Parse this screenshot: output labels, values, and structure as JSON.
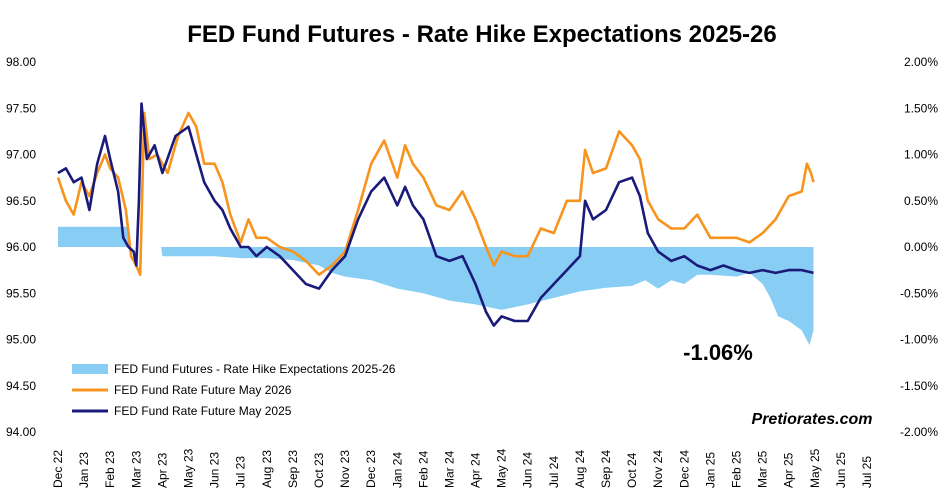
{
  "chart_data": {
    "type": "line",
    "title": "FED Fund Futures - Rate Hike Expectations 2025-26",
    "y_left": {
      "min": 94.0,
      "max": 98.0,
      "ticks": [
        "98.00",
        "97.50",
        "97.00",
        "96.50",
        "96.00",
        "95.50",
        "95.00",
        "94.50",
        "94.00"
      ]
    },
    "y_right": {
      "min": -2.0,
      "max": 2.0,
      "ticks": [
        "2.00%",
        "1.50%",
        "1.00%",
        "0.50%",
        "0.00%",
        "-0.50%",
        "-1.00%",
        "-1.50%",
        "-2.00%"
      ]
    },
    "x_labels": [
      "Dec 22",
      "Jan 23",
      "Feb 23",
      "Mar 23",
      "Apr 23",
      "May 23",
      "Jun 23",
      "Jul 23",
      "Aug 23",
      "Sep 23",
      "Oct 23",
      "Nov 23",
      "Dec 23",
      "Jan 24",
      "Feb 24",
      "Mar 24",
      "Apr 24",
      "May 24",
      "Jun 24",
      "Jul 24",
      "Aug 24",
      "Sep 24",
      "Oct 24",
      "Nov 24",
      "Dec 24",
      "Jan 25",
      "Feb 25",
      "Mar 25",
      "Apr 25",
      "May 25",
      "Jun 25",
      "Jul 25"
    ],
    "x_index_unit": "month index from Dec 22 (0) to Jul 25 (31)",
    "series": [
      {
        "name": "FED Fund Futures - Rate Hike Expectations 2025-26",
        "axis": "right",
        "color": "#87cdf4",
        "style": "area",
        "points": [
          [
            0,
            0.22
          ],
          [
            2.7,
            0.22
          ],
          [
            2.75,
            0.0
          ],
          [
            3.95,
            0.0
          ],
          [
            4.0,
            -0.1
          ],
          [
            5,
            -0.1
          ],
          [
            6,
            -0.1
          ],
          [
            7,
            -0.12
          ],
          [
            8,
            -0.12
          ],
          [
            9,
            -0.14
          ],
          [
            10,
            -0.2
          ],
          [
            10.5,
            -0.28
          ],
          [
            11,
            -0.32
          ],
          [
            12,
            -0.36
          ],
          [
            13,
            -0.45
          ],
          [
            14,
            -0.5
          ],
          [
            15,
            -0.58
          ],
          [
            16,
            -0.62
          ],
          [
            17,
            -0.68
          ],
          [
            18,
            -0.62
          ],
          [
            19,
            -0.55
          ],
          [
            20,
            -0.48
          ],
          [
            21,
            -0.44
          ],
          [
            22,
            -0.42
          ],
          [
            22.5,
            -0.36
          ],
          [
            23,
            -0.45
          ],
          [
            23.5,
            -0.36
          ],
          [
            24,
            -0.4
          ],
          [
            24.5,
            -0.3
          ],
          [
            25,
            -0.3
          ],
          [
            26,
            -0.32
          ],
          [
            26.5,
            -0.28
          ],
          [
            27,
            -0.4
          ],
          [
            27.3,
            -0.55
          ],
          [
            27.6,
            -0.75
          ],
          [
            28,
            -0.8
          ],
          [
            28.5,
            -0.9
          ],
          [
            28.8,
            -1.06
          ],
          [
            28.95,
            -0.9
          ]
        ]
      },
      {
        "name": "FED Fund Rate Future May 2026",
        "axis": "left",
        "color": "#f7941d",
        "style": "line",
        "points": [
          [
            0,
            96.75
          ],
          [
            0.3,
            96.5
          ],
          [
            0.6,
            96.35
          ],
          [
            0.9,
            96.7
          ],
          [
            1.2,
            96.55
          ],
          [
            1.5,
            96.8
          ],
          [
            1.8,
            97.0
          ],
          [
            2.0,
            96.85
          ],
          [
            2.3,
            96.75
          ],
          [
            2.6,
            96.4
          ],
          [
            2.8,
            95.9
          ],
          [
            3.0,
            95.8
          ],
          [
            3.15,
            95.7
          ],
          [
            3.3,
            97.45
          ],
          [
            3.5,
            96.95
          ],
          [
            3.8,
            97.0
          ],
          [
            4.2,
            96.8
          ],
          [
            4.6,
            97.2
          ],
          [
            5.0,
            97.45
          ],
          [
            5.3,
            97.3
          ],
          [
            5.6,
            96.9
          ],
          [
            6.0,
            96.9
          ],
          [
            6.3,
            96.7
          ],
          [
            6.6,
            96.35
          ],
          [
            7.0,
            96.05
          ],
          [
            7.3,
            96.3
          ],
          [
            7.6,
            96.1
          ],
          [
            8.0,
            96.1
          ],
          [
            8.5,
            96.0
          ],
          [
            9.0,
            95.95
          ],
          [
            9.5,
            95.85
          ],
          [
            10.0,
            95.7
          ],
          [
            10.5,
            95.8
          ],
          [
            11.0,
            95.95
          ],
          [
            11.5,
            96.4
          ],
          [
            12.0,
            96.9
          ],
          [
            12.5,
            97.15
          ],
          [
            13.0,
            96.75
          ],
          [
            13.3,
            97.1
          ],
          [
            13.6,
            96.9
          ],
          [
            14.0,
            96.75
          ],
          [
            14.5,
            96.45
          ],
          [
            15.0,
            96.4
          ],
          [
            15.5,
            96.6
          ],
          [
            16.0,
            96.3
          ],
          [
            16.4,
            96.0
          ],
          [
            16.7,
            95.8
          ],
          [
            17.0,
            95.95
          ],
          [
            17.5,
            95.9
          ],
          [
            18.0,
            95.9
          ],
          [
            18.5,
            96.2
          ],
          [
            19.0,
            96.15
          ],
          [
            19.5,
            96.5
          ],
          [
            20.0,
            96.5
          ],
          [
            20.2,
            97.05
          ],
          [
            20.5,
            96.8
          ],
          [
            21.0,
            96.85
          ],
          [
            21.5,
            97.25
          ],
          [
            22.0,
            97.1
          ],
          [
            22.3,
            96.95
          ],
          [
            22.6,
            96.5
          ],
          [
            23.0,
            96.3
          ],
          [
            23.5,
            96.2
          ],
          [
            24.0,
            96.2
          ],
          [
            24.5,
            96.35
          ],
          [
            25.0,
            96.1
          ],
          [
            25.5,
            96.1
          ],
          [
            26.0,
            96.1
          ],
          [
            26.5,
            96.05
          ],
          [
            27.0,
            96.15
          ],
          [
            27.5,
            96.3
          ],
          [
            28.0,
            96.55
          ],
          [
            28.5,
            96.6
          ],
          [
            28.7,
            96.9
          ],
          [
            28.85,
            96.8
          ],
          [
            28.95,
            96.7
          ]
        ]
      },
      {
        "name": "FED Fund Rate Future May 2025",
        "axis": "left",
        "color": "#1a1a7a",
        "style": "line",
        "points": [
          [
            0,
            96.8
          ],
          [
            0.3,
            96.85
          ],
          [
            0.6,
            96.7
          ],
          [
            0.9,
            96.75
          ],
          [
            1.2,
            96.4
          ],
          [
            1.5,
            96.9
          ],
          [
            1.8,
            97.2
          ],
          [
            2.0,
            96.95
          ],
          [
            2.3,
            96.6
          ],
          [
            2.5,
            96.1
          ],
          [
            2.7,
            96.0
          ],
          [
            2.9,
            95.95
          ],
          [
            3.0,
            95.8
          ],
          [
            3.1,
            96.5
          ],
          [
            3.2,
            97.55
          ],
          [
            3.4,
            96.95
          ],
          [
            3.7,
            97.1
          ],
          [
            4.0,
            96.8
          ],
          [
            4.5,
            97.2
          ],
          [
            5.0,
            97.3
          ],
          [
            5.3,
            97.0
          ],
          [
            5.6,
            96.7
          ],
          [
            6.0,
            96.5
          ],
          [
            6.3,
            96.4
          ],
          [
            6.6,
            96.2
          ],
          [
            7.0,
            96.0
          ],
          [
            7.3,
            96.0
          ],
          [
            7.6,
            95.9
          ],
          [
            8.0,
            96.0
          ],
          [
            8.5,
            95.9
          ],
          [
            9.0,
            95.75
          ],
          [
            9.5,
            95.6
          ],
          [
            10.0,
            95.55
          ],
          [
            10.5,
            95.75
          ],
          [
            11.0,
            95.9
          ],
          [
            11.5,
            96.3
          ],
          [
            12.0,
            96.6
          ],
          [
            12.5,
            96.75
          ],
          [
            13.0,
            96.45
          ],
          [
            13.3,
            96.65
          ],
          [
            13.6,
            96.45
          ],
          [
            14.0,
            96.3
          ],
          [
            14.5,
            95.9
          ],
          [
            15.0,
            95.85
          ],
          [
            15.5,
            95.9
          ],
          [
            16.0,
            95.6
          ],
          [
            16.4,
            95.3
          ],
          [
            16.7,
            95.15
          ],
          [
            17.0,
            95.25
          ],
          [
            17.5,
            95.2
          ],
          [
            18.0,
            95.2
          ],
          [
            18.5,
            95.45
          ],
          [
            19.0,
            95.6
          ],
          [
            19.5,
            95.75
          ],
          [
            20.0,
            95.9
          ],
          [
            20.2,
            96.5
          ],
          [
            20.5,
            96.3
          ],
          [
            21.0,
            96.4
          ],
          [
            21.5,
            96.7
          ],
          [
            22.0,
            96.75
          ],
          [
            22.3,
            96.55
          ],
          [
            22.6,
            96.15
          ],
          [
            23.0,
            95.95
          ],
          [
            23.5,
            95.85
          ],
          [
            24.0,
            95.9
          ],
          [
            24.5,
            95.8
          ],
          [
            25.0,
            95.75
          ],
          [
            25.5,
            95.8
          ],
          [
            26.0,
            95.75
          ],
          [
            26.5,
            95.72
          ],
          [
            27.0,
            95.75
          ],
          [
            27.5,
            95.72
          ],
          [
            28.0,
            95.75
          ],
          [
            28.5,
            95.75
          ],
          [
            28.95,
            95.72
          ]
        ]
      }
    ],
    "legend": {
      "placement": "bottom-left",
      "entries": [
        "FED Fund Futures - Rate Hike Expectations 2025-26",
        "FED Fund Rate Future May 2026",
        "FED Fund Rate Future May 2025"
      ]
    },
    "annotation": "-1.06%",
    "watermark": "Pretiorates.com",
    "grid": false
  }
}
